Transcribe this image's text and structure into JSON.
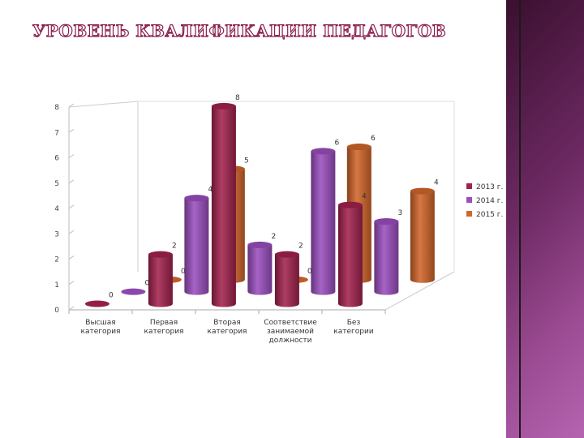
{
  "title": "УРОВЕНЬ КВАЛИФИКАЦИИ ПЕДАГОГОВ",
  "chart_data": {
    "type": "bar",
    "variant": "3d-cylinder",
    "title": "УРОВЕНЬ КВАЛИФИКАЦИИ ПЕДАГОГОВ",
    "categories": [
      "Высшая категория",
      "Первая категория",
      "Вторая категория",
      "Соответствие занимаемой должности",
      "Без категории"
    ],
    "series": [
      {
        "name": "2013 г.",
        "values": [
          0,
          2,
          8,
          2,
          4
        ],
        "color": "#a3224f"
      },
      {
        "name": "2014 г.",
        "values": [
          0,
          4,
          2,
          6,
          3
        ],
        "color": "#9b4fbf"
      },
      {
        "name": "2015 г.",
        "values": [
          0,
          5,
          0,
          6,
          4
        ],
        "color": "#d2662a"
      }
    ],
    "y_ticks": [
      0,
      1,
      2,
      3,
      4,
      5,
      6,
      7,
      8
    ],
    "ylim": [
      0,
      8
    ],
    "grid": false,
    "legend": "right"
  }
}
